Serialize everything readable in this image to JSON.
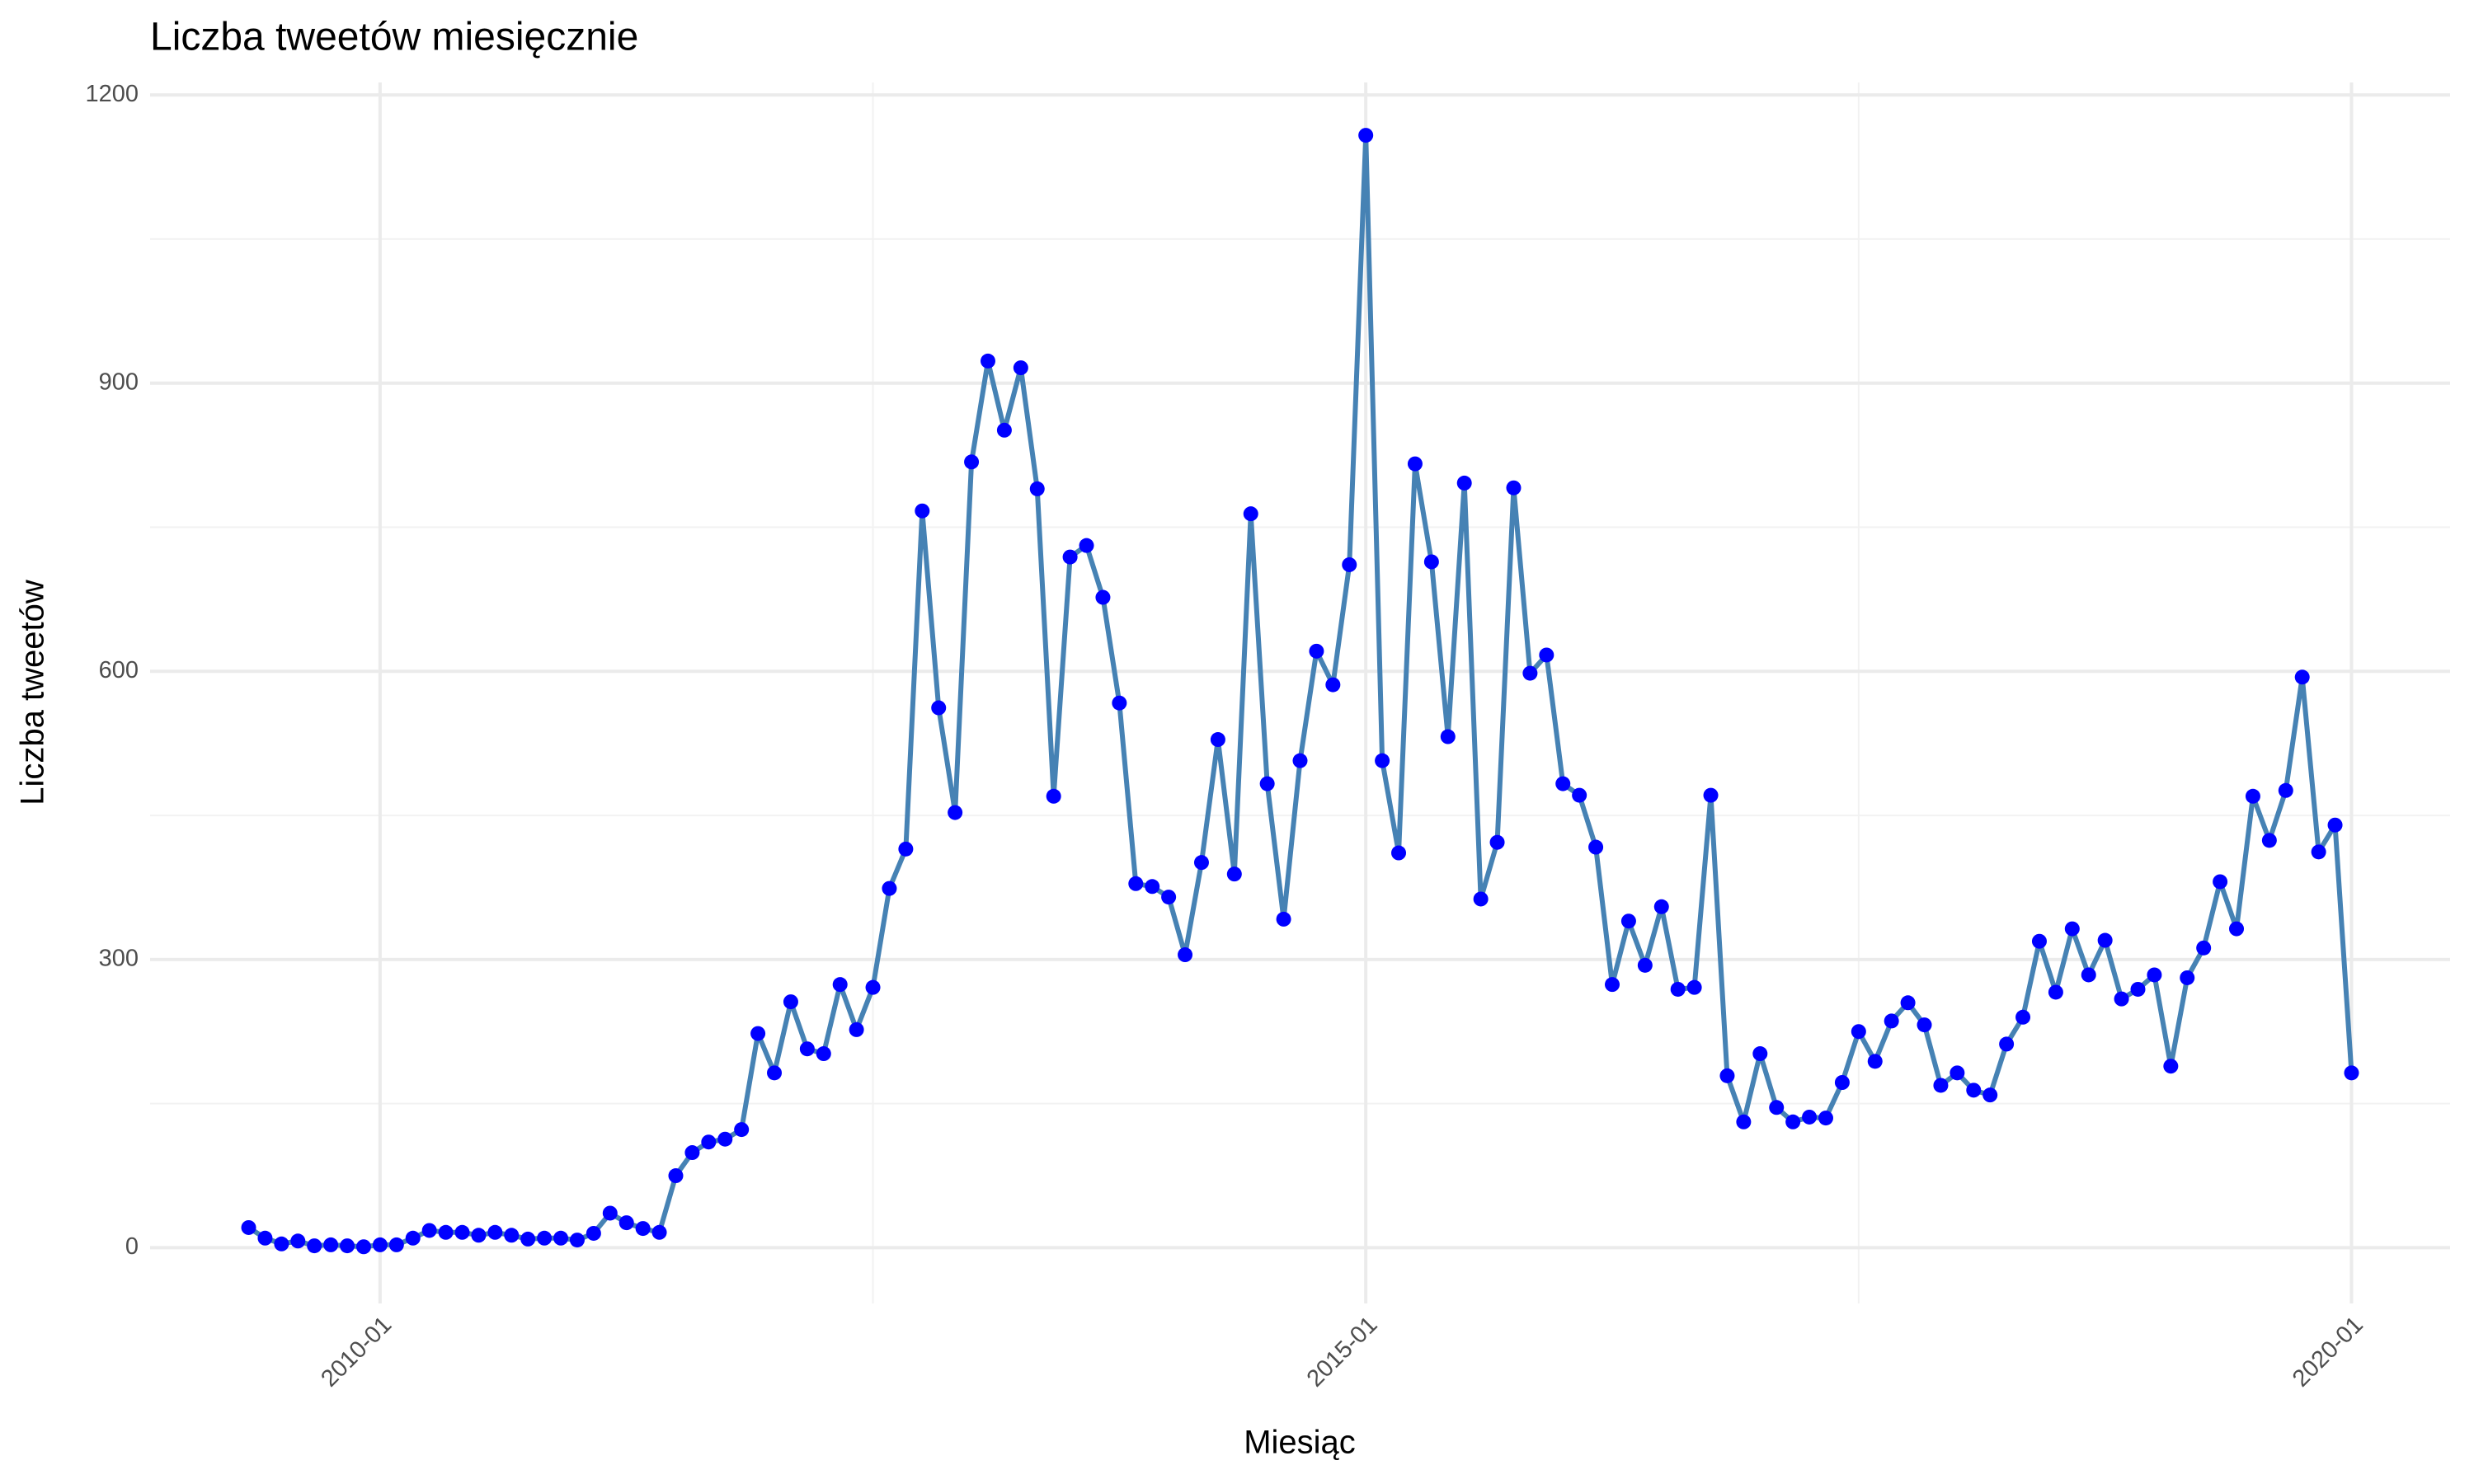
{
  "chart_data": {
    "type": "line",
    "title": "Liczba tweetów miesięcznie",
    "xlabel": "Miesiąc",
    "ylabel": "Liczba tweetów",
    "x": [
      "2009-05",
      "2009-06",
      "2009-07",
      "2009-08",
      "2009-09",
      "2009-10",
      "2009-11",
      "2009-12",
      "2010-01",
      "2010-02",
      "2010-03",
      "2010-04",
      "2010-05",
      "2010-06",
      "2010-07",
      "2010-08",
      "2010-09",
      "2010-10",
      "2010-11",
      "2010-12",
      "2011-01",
      "2011-02",
      "2011-03",
      "2011-04",
      "2011-05",
      "2011-06",
      "2011-07",
      "2011-08",
      "2011-09",
      "2011-10",
      "2011-11",
      "2011-12",
      "2012-01",
      "2012-02",
      "2012-03",
      "2012-04",
      "2012-05",
      "2012-06",
      "2012-07",
      "2012-08",
      "2012-09",
      "2012-10",
      "2012-11",
      "2012-12",
      "2013-01",
      "2013-02",
      "2013-03",
      "2013-04",
      "2013-05",
      "2013-06",
      "2013-07",
      "2013-08",
      "2013-09",
      "2013-10",
      "2013-11",
      "2013-12",
      "2014-01",
      "2014-02",
      "2014-03",
      "2014-04",
      "2014-05",
      "2014-06",
      "2014-07",
      "2014-08",
      "2014-09",
      "2014-10",
      "2014-11",
      "2014-12",
      "2015-01",
      "2015-02",
      "2015-03",
      "2015-04",
      "2015-05",
      "2015-06",
      "2015-07",
      "2015-08",
      "2015-09",
      "2015-10",
      "2015-11",
      "2015-12",
      "2016-01",
      "2016-02",
      "2016-03",
      "2016-04",
      "2016-05",
      "2016-06",
      "2016-07",
      "2016-08",
      "2016-09",
      "2016-10",
      "2016-11",
      "2016-12",
      "2017-01",
      "2017-02",
      "2017-03",
      "2017-04",
      "2017-05",
      "2017-06",
      "2017-07",
      "2017-08",
      "2017-09",
      "2017-10",
      "2017-11",
      "2017-12",
      "2018-01",
      "2018-02",
      "2018-03",
      "2018-04",
      "2018-05",
      "2018-06",
      "2018-07",
      "2018-08",
      "2018-09",
      "2018-10",
      "2018-11",
      "2018-12",
      "2019-01",
      "2019-02",
      "2019-03",
      "2019-04",
      "2019-05",
      "2019-06",
      "2019-07",
      "2019-08",
      "2019-09",
      "2019-10",
      "2019-11",
      "2019-12",
      "2020-01"
    ],
    "series": [
      {
        "name": "Liczba tweetów",
        "color": "#4682b4",
        "point_color": "#0000ff",
        "values": [
          21,
          10,
          4,
          7,
          2,
          3,
          2,
          1,
          3,
          3,
          10,
          18,
          16,
          16,
          13,
          16,
          13,
          9,
          10,
          10,
          8,
          15,
          36,
          26,
          20,
          16,
          75,
          99,
          110,
          113,
          123,
          223,
          182,
          256,
          207,
          202,
          274,
          227,
          271,
          374,
          415,
          767,
          562,
          453,
          818,
          923,
          851,
          916,
          790,
          470,
          719,
          731,
          677,
          567,
          379,
          376,
          365,
          305,
          401,
          529,
          389,
          764,
          483,
          342,
          507,
          621,
          586,
          711,
          1158,
          507,
          411,
          816,
          714,
          532,
          796,
          363,
          422,
          791,
          598,
          617,
          483,
          471,
          417,
          274,
          340,
          294,
          355,
          269,
          271,
          471,
          179,
          131,
          202,
          146,
          131,
          136,
          135,
          172,
          225,
          194,
          236,
          255,
          232,
          169,
          182,
          164,
          159,
          212,
          240,
          319,
          266,
          332,
          284,
          320,
          259,
          269,
          284,
          189,
          281,
          312,
          381,
          332,
          470,
          424,
          476,
          594,
          412,
          440,
          182
        ]
      }
    ],
    "xlim": [
      "2008-11",
      "2020-07"
    ],
    "xticks": [
      "2010-01",
      "2015-01",
      "2020-01"
    ],
    "xminor": [
      "2012-07",
      "2017-07"
    ],
    "ylim": [
      -58,
      1213
    ],
    "yticks": [
      0,
      300,
      600,
      900,
      1200
    ],
    "yminor": [
      150,
      450,
      750,
      1050
    ],
    "grid": true
  }
}
